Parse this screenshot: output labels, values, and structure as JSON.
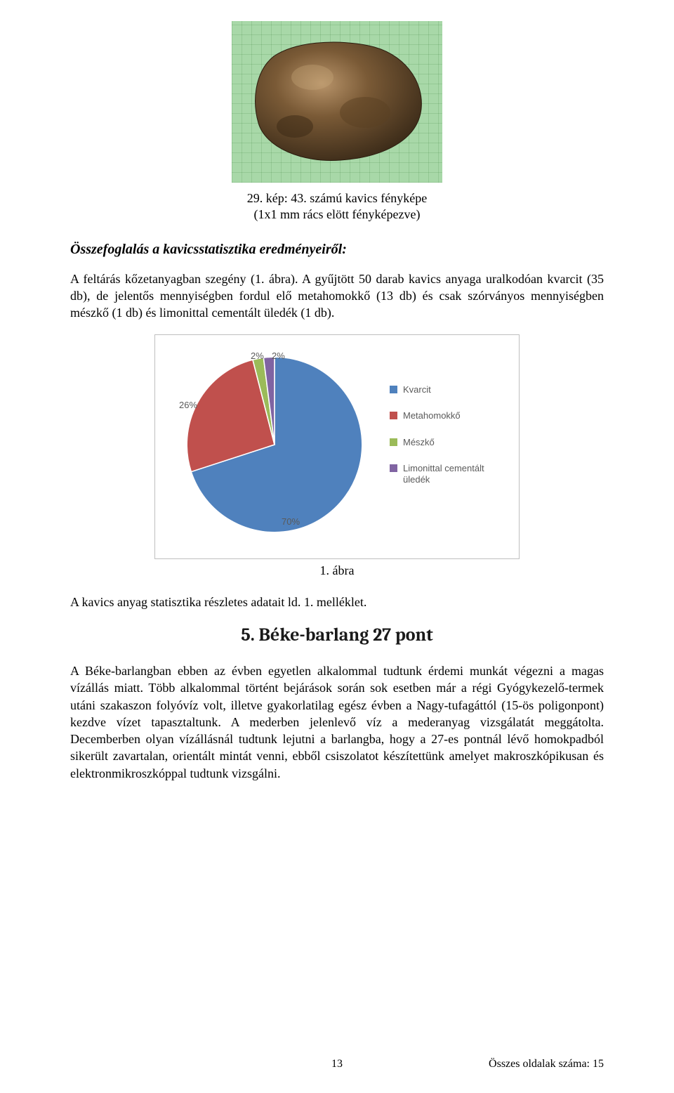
{
  "photo_caption_line1": "29. kép: 43. számú kavics fényképe",
  "photo_caption_line2": "(1x1 mm rács elött fényképezve)",
  "section_title": "Összefoglalás a kavicsstatisztika eredményeiről:",
  "para1": "A feltárás kőzetanyagban szegény (1. ábra). A gyűjtött 50 darab kavics anyaga uralkodóan kvarcit (35 db), de jelentős mennyiségben fordul elő metahomokkő (13 db) és csak szórványos mennyiségben mészkő (1 db) és limonittal cementált üledék (1 db).",
  "chart": {
    "type": "pie",
    "background_color": "#ffffff",
    "border_color": "#bfbfbf",
    "label_color": "#5a5a5a",
    "label_fontsize": 13,
    "slices": [
      {
        "label": "Kvarcit",
        "value": 70,
        "pct_label": "70%",
        "color": "#4f81bd"
      },
      {
        "label": "Metahomokkő",
        "value": 26,
        "pct_label": "26%",
        "color": "#c0504d"
      },
      {
        "label": "Mészkő",
        "value": 2,
        "pct_label": "2%",
        "color": "#9bbb59"
      },
      {
        "label": "Limonittal cementált üledék",
        "value": 2,
        "pct_label": "2%",
        "color": "#8064a2"
      }
    ]
  },
  "figure_caption": "1. ábra",
  "para2": "A kavics anyag statisztika részletes adatait ld. 1. melléklet.",
  "heading": "5. Béke-barlang 27 pont",
  "para3": "A Béke-barlangban ebben az évben egyetlen alkalommal tudtunk érdemi munkát végezni a magas vízállás miatt. Több alkalommal történt bejárások során sok esetben már a régi Gyógykezelő-termek utáni szakaszon folyóvíz volt, illetve gyakorlatilag egész évben a Nagy-tufagáttól (15-ös poligonpont) kezdve vízet tapasztaltunk. A mederben jelenlevő víz a mederanyag vizsgálatát meggátolta. Decemberben olyan vízállásnál tudtunk lejutni a barlangba, hogy a 27-es pontnál lévő homokpadból sikerült zavartalan, orientált mintát venni, ebből csiszolatot készítettünk amelyet makroszkópikusan és elektronmikroszkóppal tudtunk vizsgálni.",
  "footer_page": "13",
  "footer_right": "Összes oldalak száma: 15"
}
